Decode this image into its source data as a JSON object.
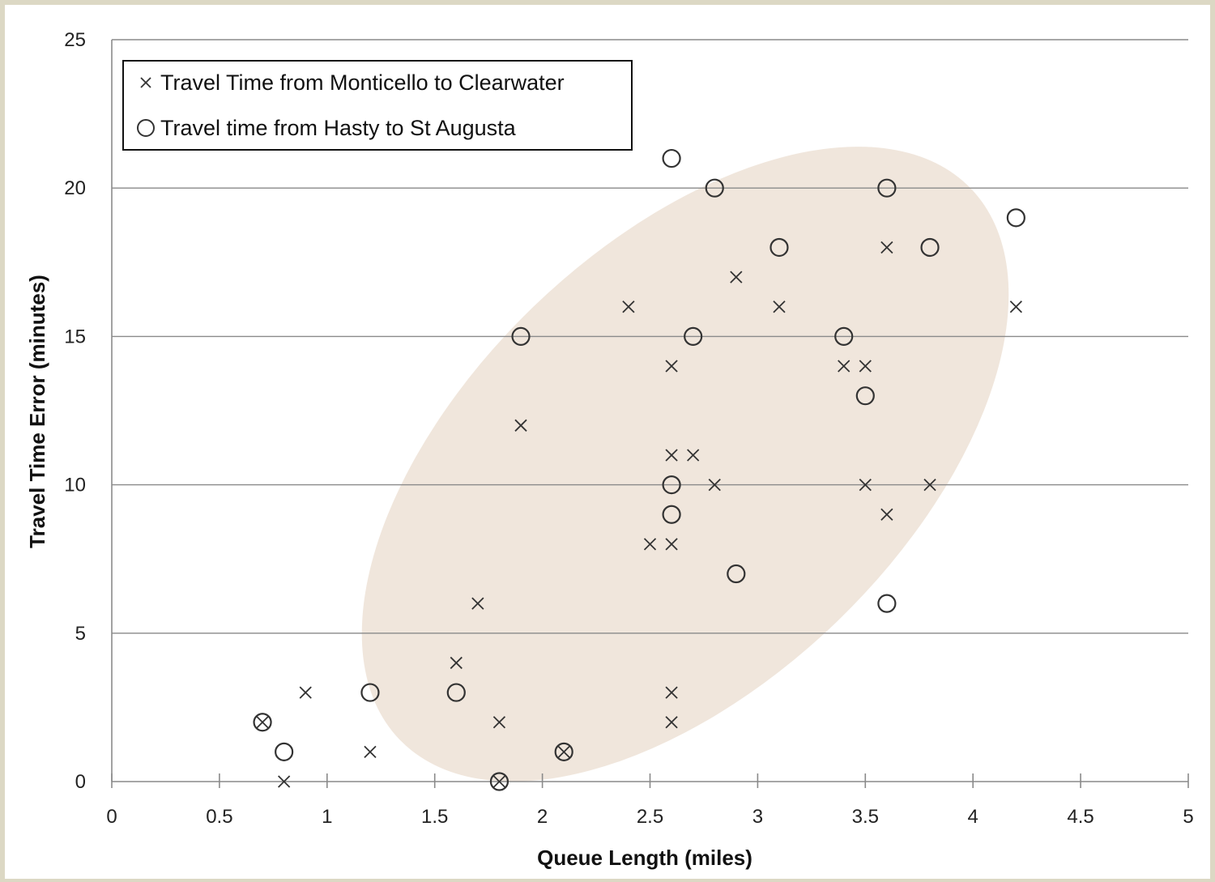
{
  "chart_data": {
    "type": "scatter",
    "title": "",
    "xlabel": "Queue Length (miles)",
    "ylabel": "Travel Time Error (minutes)",
    "xlim": [
      0,
      5
    ],
    "ylim": [
      0,
      25
    ],
    "x_ticks": [
      "0",
      "0.5",
      "1",
      "1.5",
      "2",
      "2.5",
      "3",
      "3.5",
      "4",
      "4.5",
      "5"
    ],
    "y_ticks": [
      "0",
      "5",
      "10",
      "15",
      "20",
      "25"
    ],
    "grid": "horizontal",
    "legend_position": "top-left",
    "highlight_color": "#f0e6dc",
    "series": [
      {
        "name": "Travel Time from Monticello to Clearwater",
        "marker": "x",
        "points": [
          [
            0.7,
            2
          ],
          [
            0.8,
            0
          ],
          [
            0.9,
            3
          ],
          [
            1.2,
            1
          ],
          [
            1.6,
            4
          ],
          [
            1.7,
            6
          ],
          [
            1.8,
            2
          ],
          [
            1.8,
            0
          ],
          [
            1.9,
            12
          ],
          [
            2.1,
            1
          ],
          [
            2.4,
            16
          ],
          [
            2.5,
            8
          ],
          [
            2.6,
            14
          ],
          [
            2.6,
            11
          ],
          [
            2.6,
            8
          ],
          [
            2.6,
            3
          ],
          [
            2.6,
            2
          ],
          [
            2.7,
            11
          ],
          [
            2.8,
            10
          ],
          [
            2.9,
            17
          ],
          [
            3.1,
            16
          ],
          [
            3.4,
            14
          ],
          [
            3.5,
            14
          ],
          [
            3.5,
            10
          ],
          [
            3.6,
            18
          ],
          [
            3.6,
            9
          ],
          [
            3.8,
            10
          ],
          [
            4.2,
            16
          ]
        ]
      },
      {
        "name": "Travel time from Hasty to St Augusta",
        "marker": "circle",
        "points": [
          [
            0.7,
            2
          ],
          [
            0.8,
            1
          ],
          [
            1.2,
            3
          ],
          [
            1.6,
            3
          ],
          [
            1.8,
            0
          ],
          [
            1.9,
            15
          ],
          [
            2.1,
            1
          ],
          [
            2.6,
            21
          ],
          [
            2.6,
            10
          ],
          [
            2.6,
            9
          ],
          [
            2.7,
            15
          ],
          [
            2.8,
            20
          ],
          [
            2.9,
            7
          ],
          [
            3.1,
            18
          ],
          [
            3.4,
            15
          ],
          [
            3.5,
            13
          ],
          [
            3.6,
            20
          ],
          [
            3.6,
            6
          ],
          [
            3.8,
            18
          ],
          [
            4.2,
            19
          ]
        ]
      }
    ]
  }
}
